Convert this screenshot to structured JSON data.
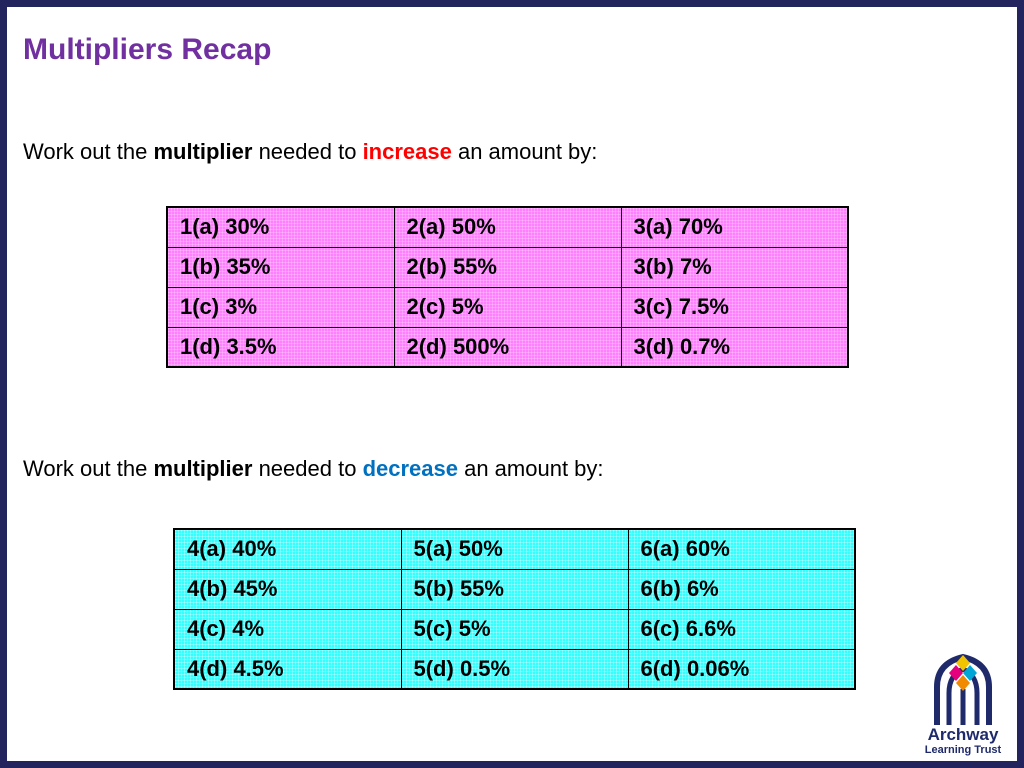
{
  "title": "Multipliers Recap",
  "increase_prompt": {
    "before": "Work out the ",
    "bold": "multiplier",
    "middle": " needed to ",
    "keyword": "increase",
    "after": " an amount by:"
  },
  "decrease_prompt": {
    "before": "Work out the ",
    "bold": "multiplier",
    "middle": " needed to ",
    "keyword": "decrease",
    "after": " an amount by:"
  },
  "increase_table": {
    "rows": [
      [
        "1(a) 30%",
        "2(a) 50%",
        "3(a) 70%"
      ],
      [
        "1(b) 35%",
        "2(b) 55%",
        "3(b) 7%"
      ],
      [
        "1(c) 3%",
        "2(c) 5%",
        "3(c) 7.5%"
      ],
      [
        "1(d) 3.5%",
        "2(d) 500%",
        "3(d) 0.7%"
      ]
    ]
  },
  "decrease_table": {
    "rows": [
      [
        "4(a) 40%",
        "5(a) 50%",
        "6(a) 60%"
      ],
      [
        "4(b) 45%",
        "5(b) 55%",
        "6(b) 6%"
      ],
      [
        "4(c) 4%",
        "5(c) 5%",
        "6(c) 6.6%"
      ],
      [
        "4(d) 4.5%",
        "5(d) 0.5%",
        "6(d) 0.06%"
      ]
    ]
  },
  "logo": {
    "line1": "Archway",
    "line2": "Learning Trust",
    "icon": "archway-logo-icon"
  },
  "colors": {
    "title": "#7030a0",
    "increase": "#ff0000",
    "decrease": "#0070c0",
    "increase_table_bg": "#ff80ff",
    "decrease_table_bg": "#33ffff",
    "frame": "#23235e"
  }
}
